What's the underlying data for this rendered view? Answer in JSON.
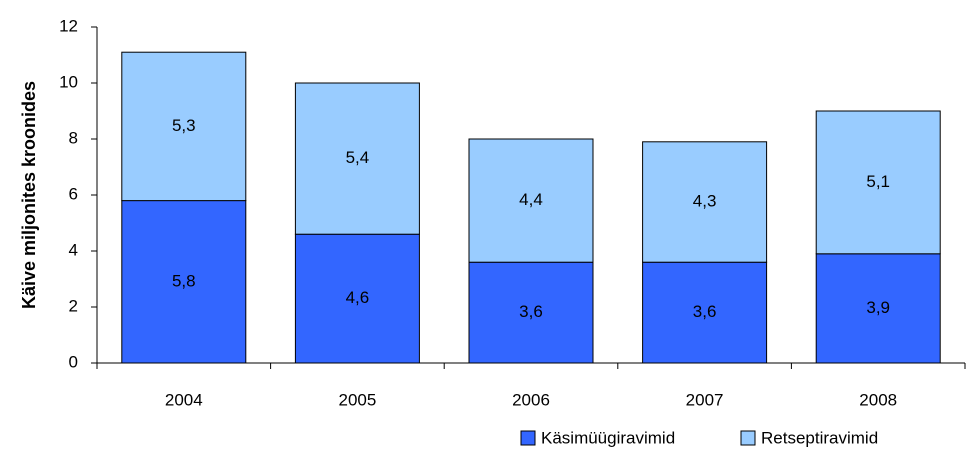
{
  "chart_data": {
    "type": "stacked_bar",
    "y_label": "Käive miljonites kroonides",
    "categories": [
      "2004",
      "2005",
      "2006",
      "2007",
      "2008"
    ],
    "series": [
      {
        "name": "Käsimüügiravimid",
        "color": "#3366ff",
        "values": [
          5.8,
          4.6,
          3.6,
          3.6,
          3.9
        ],
        "value_labels": [
          "5,8",
          "4,6",
          "3,6",
          "3,6",
          "3,9"
        ]
      },
      {
        "name": "Retseptiravimid",
        "color": "#99ccff",
        "values": [
          5.3,
          5.4,
          4.4,
          4.3,
          5.1
        ],
        "value_labels": [
          "5,3",
          "5,4",
          "4,4",
          "4,3",
          "5,1"
        ]
      }
    ],
    "ylim": [
      0,
      12
    ],
    "yticks": [
      0,
      2,
      4,
      6,
      8,
      10,
      12
    ],
    "legend": "bottom-right"
  }
}
